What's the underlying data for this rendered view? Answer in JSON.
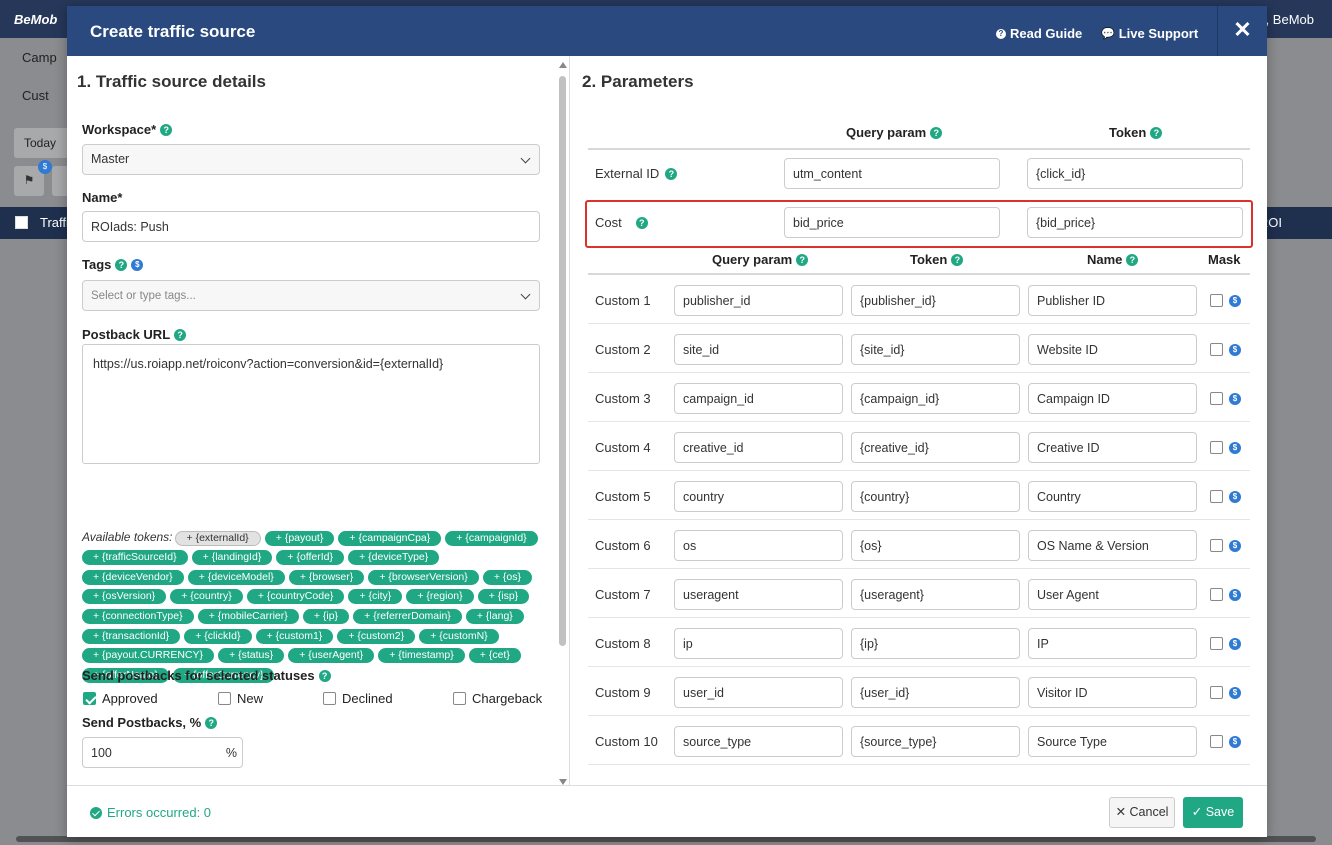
{
  "background": {
    "logo": "BeMob",
    "greeting": "Hi, BeMob",
    "menu_campaigns": "Camp",
    "menu_custom": "Cust",
    "today_btn": "Today",
    "badge": "$",
    "table_col_traffic": "Traffi",
    "table_col_roi": "ROI"
  },
  "modal": {
    "title": "Create traffic source",
    "read_guide": "Read Guide",
    "live_support": "Live Support",
    "close": "✕"
  },
  "details": {
    "section_title": "1. Traffic source details",
    "workspace_label": "Workspace*",
    "workspace_value": "Master",
    "name_label": "Name*",
    "name_value": "ROIads: Push",
    "tags_label": "Tags",
    "tags_placeholder": "Select or type tags...",
    "postback_label": "Postback URL",
    "postback_value": "https://us.roiapp.net/roiconv?action=conversion&id={externalId}",
    "tokens_label": "Available tokens:",
    "tokens": [
      "+ {externalId}",
      "+ {payout}",
      "+ {campaignCpa}",
      "+ {campaignId}",
      "+ {trafficSourceId}",
      "+ {landingId}",
      "+ {offerId}",
      "+ {deviceType}",
      "+ {deviceVendor}",
      "+ {deviceModel}",
      "+ {browser}",
      "+ {browserVersion}",
      "+ {os}",
      "+ {osVersion}",
      "+ {country}",
      "+ {countryCode}",
      "+ {city}",
      "+ {region}",
      "+ {isp}",
      "+ {connectionType}",
      "+ {mobileCarrier}",
      "+ {ip}",
      "+ {referrerDomain}",
      "+ {lang}",
      "+ {transactionId}",
      "+ {clickId}",
      "+ {custom1}",
      "+ {custom2}",
      "+ {customN}",
      "+ {payout.CURRENCY}",
      "+ {status}",
      "+ {userAgent}",
      "+ {timestamp}",
      "+ {cet}",
      "+ {offerName}",
      "+ {offerCurrency}"
    ],
    "statuses_label": "Send postbacks for selected statuses",
    "statuses": [
      {
        "label": "Approved",
        "checked": true
      },
      {
        "label": "New",
        "checked": false
      },
      {
        "label": "Declined",
        "checked": false
      },
      {
        "label": "Chargeback",
        "checked": false
      }
    ],
    "send_pct_label": "Send Postbacks, %",
    "send_pct_value": "100",
    "pct_sign": "%"
  },
  "params": {
    "section_title": "2. Parameters",
    "hdr_query": "Query param",
    "hdr_token": "Token",
    "hdr_name": "Name",
    "hdr_mask": "Mask",
    "external": {
      "label": "External ID",
      "query": "utm_content",
      "token": "{click_id}"
    },
    "cost": {
      "label": "Cost",
      "query": "bid_price",
      "token": "{bid_price}"
    },
    "custom": [
      {
        "label": "Custom 1",
        "query": "publisher_id",
        "token": "{publisher_id}",
        "name": "Publisher ID"
      },
      {
        "label": "Custom 2",
        "query": "site_id",
        "token": "{site_id}",
        "name": "Website ID"
      },
      {
        "label": "Custom 3",
        "query": "campaign_id",
        "token": "{campaign_id}",
        "name": "Campaign ID"
      },
      {
        "label": "Custom 4",
        "query": "creative_id",
        "token": "{creative_id}",
        "name": "Creative ID"
      },
      {
        "label": "Custom 5",
        "query": "country",
        "token": "{country}",
        "name": "Country"
      },
      {
        "label": "Custom 6",
        "query": "os",
        "token": "{os}",
        "name": "OS Name & Version"
      },
      {
        "label": "Custom 7",
        "query": "useragent",
        "token": "{useragent}",
        "name": "User Agent"
      },
      {
        "label": "Custom 8",
        "query": "ip",
        "token": "{ip}",
        "name": "IP"
      },
      {
        "label": "Custom 9",
        "query": "user_id",
        "token": "{user_id}",
        "name": "Visitor ID"
      },
      {
        "label": "Custom 10",
        "query": "source_type",
        "token": "{source_type}",
        "name": "Source Type"
      }
    ]
  },
  "footer": {
    "errors": "Errors occurred: 0",
    "cancel": "Cancel",
    "save": "Save"
  },
  "colors": {
    "accent": "#20a884",
    "header": "#2a4a7f",
    "highlight": "#d9342b",
    "info": "#2f7ad3"
  }
}
